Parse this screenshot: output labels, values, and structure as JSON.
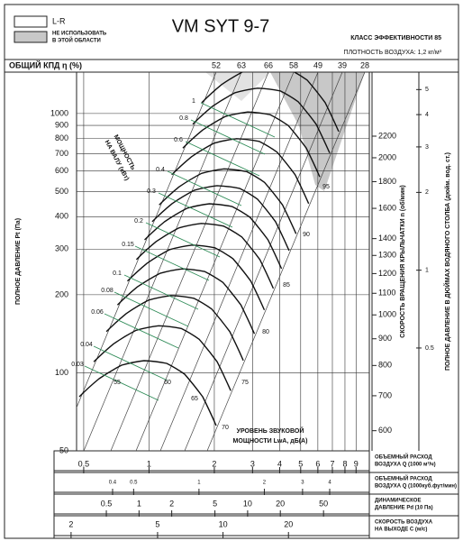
{
  "chart_data": {
    "type": "fan-chart",
    "title": "VM SYT 9-7",
    "legend": [
      {
        "label": [
          "L-R"
        ],
        "color": "#ffffff"
      },
      {
        "label": [
          "НЕ ИСПОЛЬЗОВАТЬ",
          "В ЭТОЙ ОБЛАСТИ"
        ],
        "color": "#c8c8c8"
      }
    ],
    "efficiency_class": "КЛАСС ЭФФЕКТИВНОСТИ 85",
    "air_density": "ПЛОТНОСТЬ ВОЗДУХА: 1,2 кг/м³",
    "efficiency_label": "ОБЩИЙ КПД η (%)",
    "efficiency_values": [
      52,
      63,
      66,
      58,
      49,
      39,
      28
    ],
    "ylabel": "ПОЛНОЕ ДАВЛЕНИЕ Pt (Па)",
    "log_scale": true,
    "ylim": [
      50,
      1444
    ],
    "yticks": [
      50,
      100,
      200,
      300,
      400,
      500,
      600,
      700,
      800,
      900,
      1000
    ],
    "speed_axis": {
      "label": "СКОРОСТЬ ВРАЩЕНИЯ КРЫЛЬЧАТКИ n (об/мин)",
      "lim": [
        549,
        2918
      ],
      "ticks": [
        600,
        700,
        800,
        900,
        1000,
        1100,
        1200,
        1300,
        1400,
        1600,
        1800,
        2000,
        2200
      ]
    },
    "inch_axis": {
      "label": "ПОЛНОЕ ДАВЛЕНИЕ В ДЮЙМАХ ВОДЯНОГО СТОЛБА (дюйм. вод. ст.)",
      "lim": [
        0.2,
        5.84
      ],
      "ticks": [
        0.5,
        1,
        2,
        3,
        4,
        5
      ]
    },
    "x_axes": [
      {
        "label": [
          "ОБЪЕМНЫЙ РАСХОД",
          "ВОЗДУХА Q (1000 м³/ч)"
        ],
        "xlim": [
          0.365,
          10.36
        ],
        "xticks": [
          0.5,
          1,
          2,
          3,
          4,
          5,
          6,
          7,
          8,
          9
        ]
      },
      {
        "label": [
          "ОБЪЕМНЫЙ РАСХОД",
          "ВОЗДУХА Q (1000куб.фут/мин)"
        ],
        "xlim": [
          0.215,
          6.09
        ],
        "xticks": [
          0.4,
          0.5,
          1,
          2,
          3,
          4
        ]
      },
      {
        "label": [
          "ДИНАМИЧЕСКОЕ",
          "ДАВЛЕНИЕ Pd (10 Па)"
        ],
        "xlim": [
          0.165,
          132
        ],
        "xticks": [
          0.5,
          1,
          2,
          5,
          10,
          20,
          50
        ]
      },
      {
        "label": [
          "СКОРОСТЬ ВОЗДУХА",
          "НА ВЫХОДЕ С (м/с)"
        ],
        "xlim": [
          1.67,
          47.1
        ],
        "xticks": [
          2,
          5,
          10,
          20
        ]
      }
    ],
    "power_label": [
      "МОЩНОСТЬ",
      "НА ВАЛУ (кВт)"
    ],
    "power_values": [
      1,
      0.8,
      0.6,
      0.4,
      0.3,
      0.2,
      0.15,
      0.1,
      0.08,
      0.06,
      0.04,
      0.03
    ],
    "power_color": "#2e8b57",
    "sound_label": [
      "УРОВЕНЬ ЗВУКОВОЙ",
      "МОЩНОСТИ LwA, дБ(А)"
    ],
    "sound_values": [
      55,
      60,
      65,
      70,
      75,
      80,
      85,
      90,
      95
    ],
    "sound_color": "#c0392b"
  }
}
